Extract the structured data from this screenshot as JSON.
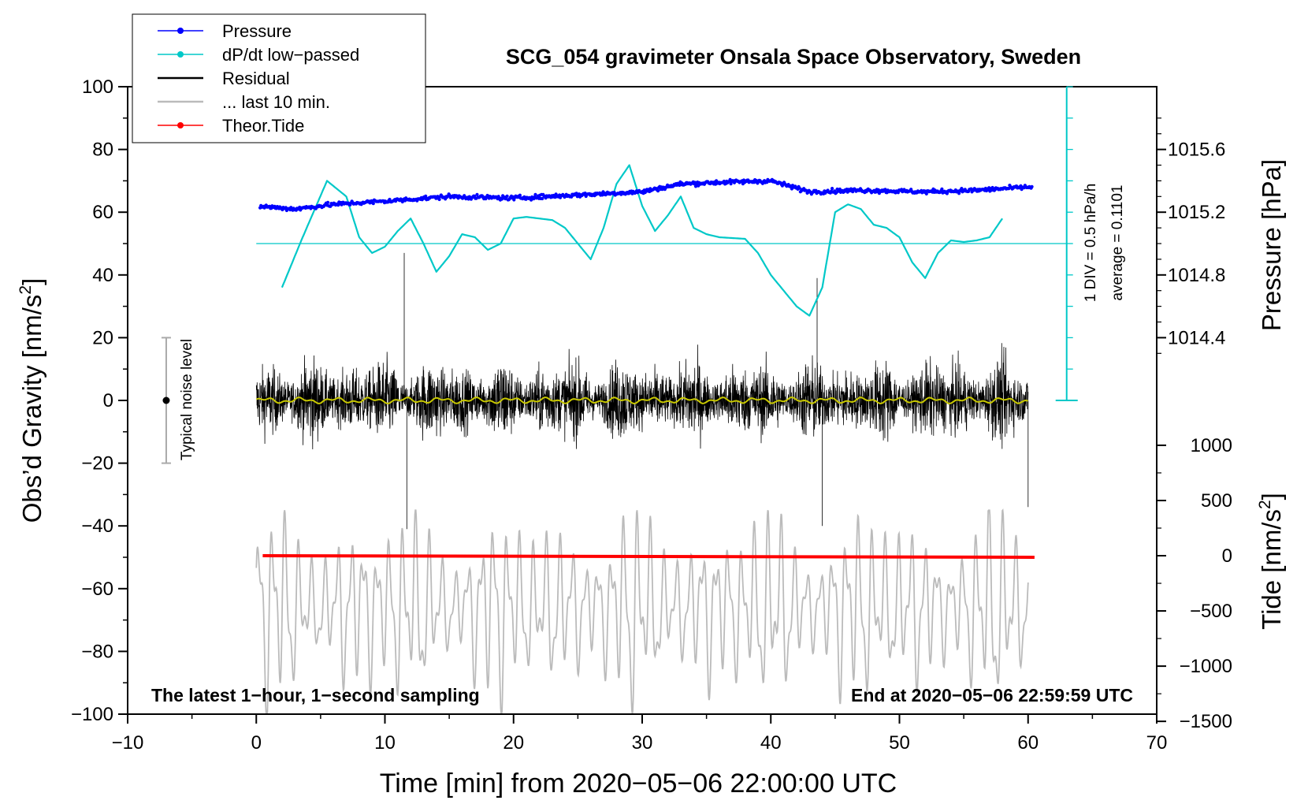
{
  "chart_data": {
    "type": "line",
    "title": "SCG_054 gravimeter Onsala Space Observatory, Sweden",
    "xlabel": "Time [min] from 2020−05−06 22:00:00 UTC",
    "ylabel_left": "Obs’d Gravity [nm/s",
    "ylabel_left_sup": "2",
    "ylabel_left_end": "]",
    "ylabel_pressure": "Pressure [hPa]",
    "ylabel_tide": "Tide [nm/s",
    "ylabel_tide_sup": "2",
    "ylabel_tide_end": "]",
    "xlim": [
      -10,
      70
    ],
    "ylim": [
      -100,
      100
    ],
    "x_ticks": [
      "−10",
      "0",
      "10",
      "20",
      "30",
      "40",
      "50",
      "60",
      "70"
    ],
    "y_ticks": [
      "−100",
      "−80",
      "−60",
      "−40",
      "−20",
      "0",
      "20",
      "40",
      "60",
      "80",
      "100"
    ],
    "pressure_axis": {
      "ticks": [
        "1014.4",
        "1014.8",
        "1015.2",
        "1015.6"
      ],
      "tick_values": [
        1014.4,
        1014.8,
        1015.2,
        1015.6
      ],
      "note": "1 DIV = 0.5 hPa/h",
      "average": "average = 0.1101"
    },
    "tide_axis": {
      "ticks": [
        "−1500",
        "−1000",
        "−500",
        "0",
        "500",
        "1000"
      ],
      "tick_values": [
        -1500,
        -1000,
        -500,
        0,
        500,
        1000
      ]
    },
    "legend": [
      {
        "label": "Pressure",
        "color": "#0000ff",
        "marker": true
      },
      {
        "label": "dP/dt low−passed",
        "color": "#00c8c8",
        "marker": true
      },
      {
        "label": "Residual",
        "color": "#000000",
        "marker": false
      },
      {
        "label": "... last 10 min.",
        "color": "#bbbbbb",
        "marker": false
      },
      {
        "label": "Theor.Tide",
        "color": "#ff0000",
        "marker": true
      }
    ],
    "noise_label": "Typical noise level",
    "noise_bar": {
      "x": -7,
      "center": 0,
      "half_range": 20
    },
    "footer_left": "The latest 1−hour, 1−second sampling",
    "footer_right": "End at 2020−05−06 22:59:59 UTC",
    "series": [
      {
        "name": "Pressure",
        "color": "#0000ff",
        "x": [
          0,
          3,
          6,
          10,
          15,
          20,
          25,
          30,
          33,
          36,
          40,
          43,
          47,
          52,
          56,
          60
        ],
        "y": [
          62,
          61,
          62.5,
          63.5,
          65,
          64.5,
          65.5,
          66.5,
          69,
          69.5,
          70,
          66.5,
          67,
          66.5,
          67,
          68
        ]
      },
      {
        "name": "dP/dt low-passed",
        "color": "#00c8c8",
        "x": [
          2,
          3.5,
          5.5,
          7,
          8,
          9,
          10,
          11,
          12,
          13,
          14,
          15,
          16,
          17,
          18,
          19,
          20,
          21,
          22,
          23,
          24,
          25,
          26,
          27,
          28,
          29,
          30,
          31,
          32,
          33,
          34,
          35,
          36,
          38,
          39,
          40,
          41,
          42,
          43,
          44,
          45,
          46,
          47,
          48,
          49,
          50,
          51,
          52,
          53,
          54,
          55,
          56,
          57,
          58
        ],
        "y": [
          36,
          51,
          70,
          65,
          52,
          47,
          49,
          54,
          58,
          50,
          41,
          46,
          53,
          52,
          48,
          50,
          58,
          58.5,
          58,
          57.5,
          55,
          50,
          45,
          55,
          69,
          75,
          62,
          54,
          59,
          65,
          55,
          53,
          52,
          51.5,
          47,
          40,
          35,
          30,
          27,
          36,
          60,
          62.5,
          61,
          56,
          55,
          52,
          44,
          39,
          47,
          51,
          50.5,
          51,
          52,
          58
        ]
      },
      {
        "name": "Residual",
        "color": "#000000",
        "x_range": [
          0,
          60
        ],
        "typical_amplitude": 14,
        "extremes": [
          {
            "x": 11.5,
            "y": 47
          },
          {
            "x": 11.7,
            "y": -41
          },
          {
            "x": 43.6,
            "y": 39
          },
          {
            "x": 44,
            "y": -40
          },
          {
            "x": 60,
            "y": -34
          }
        ]
      },
      {
        "name": "Residual smoothed",
        "color": "#c8c800",
        "x_range": [
          0,
          60
        ],
        "level": 0,
        "amplitude": 1
      },
      {
        "name": "... last 10 min.",
        "color": "#bbbbbb",
        "x_range": [
          0,
          60
        ],
        "center": -66,
        "amplitude_range": [
          12,
          32
        ],
        "max": -35,
        "min": -100
      },
      {
        "name": "Theor.Tide",
        "color": "#ff0000",
        "x": [
          0.5,
          60.5
        ],
        "y": [
          -49.5,
          -50
        ]
      }
    ]
  }
}
